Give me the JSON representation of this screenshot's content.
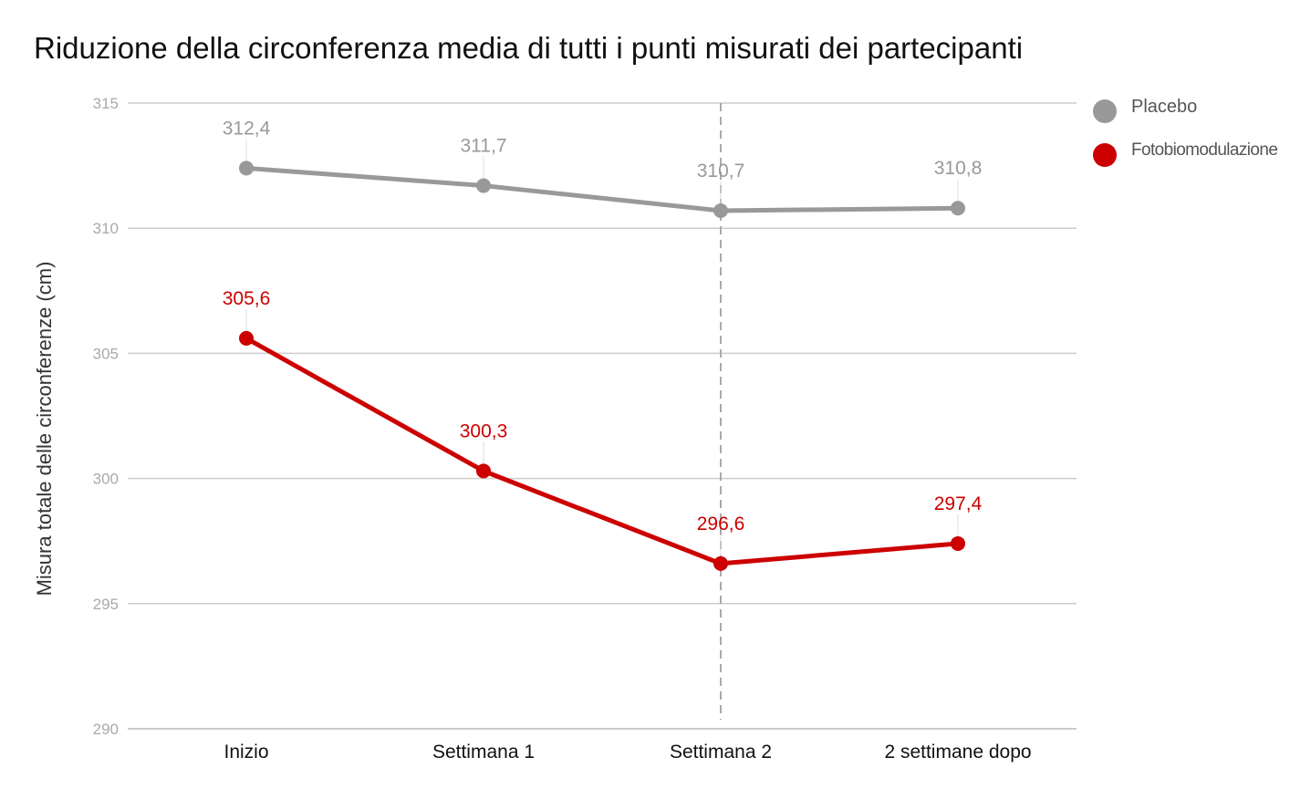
{
  "chart_data": {
    "type": "line",
    "title": "Riduzione della circonferenza media di tutti i punti misurati dei partecipanti",
    "xlabel": "",
    "ylabel": "Misura totale delle circonferenze (cm)",
    "categories": [
      "Inizio",
      "Settimana 1",
      "Settimana 2",
      "2 settimane dopo"
    ],
    "ylim": [
      290,
      315
    ],
    "yticks": [
      315,
      310,
      305,
      300,
      295,
      290
    ],
    "grid": true,
    "legend_position": "top-right",
    "series": [
      {
        "name": "Placebo",
        "color": "#999999",
        "values": [
          312.4,
          311.7,
          310.7,
          310.8
        ],
        "labels": [
          "312,4",
          "311,7",
          "310,7",
          "310,8"
        ]
      },
      {
        "name": "Fotobiomodulazione",
        "color": "#cc0000",
        "values": [
          305.6,
          300.3,
          296.6,
          297.4
        ],
        "labels": [
          "305,6",
          "300,3",
          "296,6",
          "297,4"
        ]
      }
    ],
    "annotations": [
      {
        "type": "vertical-dashed-line",
        "at_category": "Settimana 2"
      }
    ]
  }
}
